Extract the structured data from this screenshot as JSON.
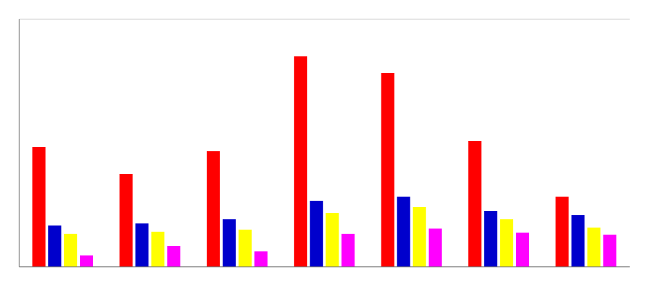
{
  "chart_data": {
    "type": "bar",
    "categories": [
      null,
      null,
      null,
      null,
      null,
      null,
      null
    ],
    "series": [
      {
        "color": "#FF0000",
        "values": [
          5.8,
          4.5,
          5.6,
          10.2,
          9.4,
          6.1,
          3.4
        ]
      },
      {
        "color": "#0000CC",
        "values": [
          2.0,
          2.1,
          2.3,
          3.2,
          3.4,
          2.7,
          2.5
        ]
      },
      {
        "color": "#FFFF00",
        "values": [
          1.6,
          1.7,
          1.8,
          2.6,
          2.9,
          2.3,
          1.9
        ]
      },
      {
        "color": "#FF00FF",
        "values": [
          0.55,
          1.0,
          0.75,
          1.6,
          1.85,
          1.65,
          1.55
        ]
      }
    ],
    "ylim": [
      0,
      12
    ],
    "yticks": [
      0,
      1.2,
      2.4,
      3.6,
      4.8,
      6,
      7.2,
      8.4,
      9.6,
      10.8,
      12
    ],
    "grid": true,
    "tick_labels": false
  }
}
